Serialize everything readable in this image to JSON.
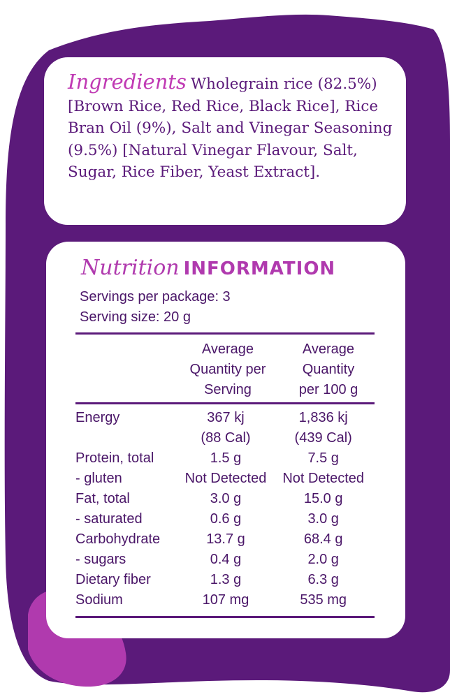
{
  "colors": {
    "background_purple": "#5b1a7a",
    "accent_magenta": "#c03ab4",
    "text_purple": "#4a1668",
    "card_white": "#ffffff"
  },
  "ingredients": {
    "title": "Ingredients",
    "text": "Wholegrain rice (82.5%) [Brown Rice, Red Rice, Black Rice], Rice Bran Oil (9%), Salt and Vinegar Seasoning (9.5%) [Natural Vinegar Flavour, Salt, Sugar, Rice Fiber, Yeast Extract]."
  },
  "nutrition": {
    "title_script": "Nutrition",
    "title_caps": "INFORMATION",
    "servings_per_package": "Servings per package: 3",
    "serving_size": "Serving size: 20 g",
    "columns": {
      "per_serving": [
        "Average",
        "Quantity per",
        "Serving"
      ],
      "per_100g": [
        "Average",
        "Quantity",
        "per 100 g"
      ]
    },
    "rows": [
      {
        "name": "Energy",
        "per_serving": "367 kj",
        "per_100g": "1,836 kj",
        "per_serving_sub": "(88 Cal)",
        "per_100g_sub": "(439 Cal)"
      },
      {
        "name": "Protein, total",
        "per_serving": "1.5 g",
        "per_100g": "7.5 g"
      },
      {
        "name": "- gluten",
        "per_serving": "Not Detected",
        "per_100g": "Not Detected"
      },
      {
        "name": "Fat, total",
        "per_serving": "3.0 g",
        "per_100g": "15.0 g"
      },
      {
        "name": "- saturated",
        "per_serving": "0.6 g",
        "per_100g": "3.0 g"
      },
      {
        "name": "Carbohydrate",
        "per_serving": "13.7 g",
        "per_100g": "68.4 g"
      },
      {
        "name": "- sugars",
        "per_serving": "0.4 g",
        "per_100g": "2.0 g"
      },
      {
        "name": "Dietary fiber",
        "per_serving": "1.3 g",
        "per_100g": "6.3 g"
      },
      {
        "name": "Sodium",
        "per_serving": "107 mg",
        "per_100g": "535 mg"
      }
    ]
  }
}
